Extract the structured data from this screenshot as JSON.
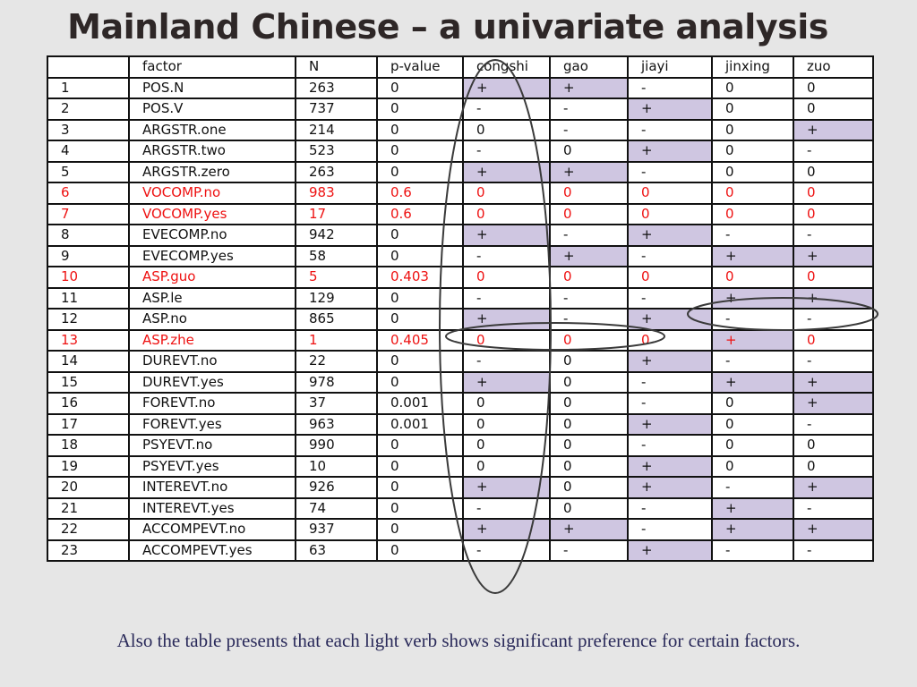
{
  "title": "Mainland Chinese – a univariate analysis",
  "columns": [
    "",
    "factor",
    "N",
    "p-value",
    "congshi",
    "gao",
    "jiayi",
    "jinxing",
    "zuo"
  ],
  "rows": [
    {
      "cells": [
        "1",
        "POS.N",
        "263",
        "0",
        "+",
        "+",
        "-",
        "0",
        "0"
      ],
      "red": false
    },
    {
      "cells": [
        "2",
        "POS.V",
        "737",
        "0",
        "-",
        "-",
        "+",
        "0",
        "0"
      ],
      "red": false
    },
    {
      "cells": [
        "3",
        "ARGSTR.one",
        "214",
        "0",
        "0",
        "-",
        "-",
        "0",
        "+"
      ],
      "red": false
    },
    {
      "cells": [
        "4",
        "ARGSTR.two",
        "523",
        "0",
        "-",
        "0",
        "+",
        "0",
        "-"
      ],
      "red": false
    },
    {
      "cells": [
        "5",
        "ARGSTR.zero",
        "263",
        "0",
        "+",
        "+",
        "-",
        "0",
        "0"
      ],
      "red": false
    },
    {
      "cells": [
        "6",
        "VOCOMP.no",
        "983",
        "0.6",
        "0",
        "0",
        "0",
        "0",
        "0"
      ],
      "red": true
    },
    {
      "cells": [
        "7",
        "VOCOMP.yes",
        "17",
        "0.6",
        "0",
        "0",
        "0",
        "0",
        "0"
      ],
      "red": true
    },
    {
      "cells": [
        "8",
        "EVECOMP.no",
        "942",
        "0",
        "+",
        "-",
        "+",
        "-",
        "-"
      ],
      "red": false
    },
    {
      "cells": [
        "9",
        "EVECOMP.yes",
        "58",
        "0",
        "-",
        "+",
        "-",
        "+",
        "+"
      ],
      "red": false
    },
    {
      "cells": [
        "10",
        "ASP.guo",
        "5",
        "0.403",
        "0",
        "0",
        "0",
        "0",
        "0"
      ],
      "red": true
    },
    {
      "cells": [
        "11",
        "ASP.le",
        "129",
        "0",
        "-",
        "-",
        "-",
        "+",
        "+"
      ],
      "red": false
    },
    {
      "cells": [
        "12",
        "ASP.no",
        "865",
        "0",
        "+",
        "-",
        "+",
        "-",
        "-"
      ],
      "red": false
    },
    {
      "cells": [
        "13",
        "ASP.zhe",
        "1",
        "0.405",
        "0",
        "0",
        "0",
        "+",
        "0"
      ],
      "red": true
    },
    {
      "cells": [
        "14",
        "DUREVT.no",
        "22",
        "0",
        "-",
        "0",
        "+",
        "-",
        "-"
      ],
      "red": false
    },
    {
      "cells": [
        "15",
        "DUREVT.yes",
        "978",
        "0",
        "+",
        "0",
        "-",
        "+",
        "+"
      ],
      "red": false
    },
    {
      "cells": [
        "16",
        "FOREVT.no",
        "37",
        "0.001",
        "0",
        "0",
        "-",
        "0",
        "+"
      ],
      "red": false
    },
    {
      "cells": [
        "17",
        "FOREVT.yes",
        "963",
        "0.001",
        "0",
        "0",
        "+",
        "0",
        "-"
      ],
      "red": false
    },
    {
      "cells": [
        "18",
        "PSYEVT.no",
        "990",
        "0",
        "0",
        "0",
        "-",
        "0",
        "0"
      ],
      "red": false
    },
    {
      "cells": [
        "19",
        "PSYEVT.yes",
        "10",
        "0",
        "0",
        "0",
        "+",
        "0",
        "0"
      ],
      "red": false
    },
    {
      "cells": [
        "20",
        "INTEREVT.no",
        "926",
        "0",
        "+",
        "0",
        "+",
        "-",
        "+"
      ],
      "red": false
    },
    {
      "cells": [
        "21",
        "INTEREVT.yes",
        "74",
        "0",
        "-",
        "0",
        "-",
        "+",
        "-"
      ],
      "red": false
    },
    {
      "cells": [
        "22",
        "ACCOMPEVT.no",
        "937",
        "0",
        "+",
        "+",
        "-",
        "+",
        "+"
      ],
      "red": false
    },
    {
      "cells": [
        "23",
        "ACCOMPEVT.yes",
        "63",
        "0",
        "-",
        "-",
        "+",
        "-",
        "-"
      ],
      "red": false
    }
  ],
  "caption": "Also the table presents that each light verb shows significant preference for certain factors.",
  "colors": {
    "highlight": "#cfc6e1",
    "significant_off": "#ee1111",
    "oval": "#3a3a3a"
  }
}
